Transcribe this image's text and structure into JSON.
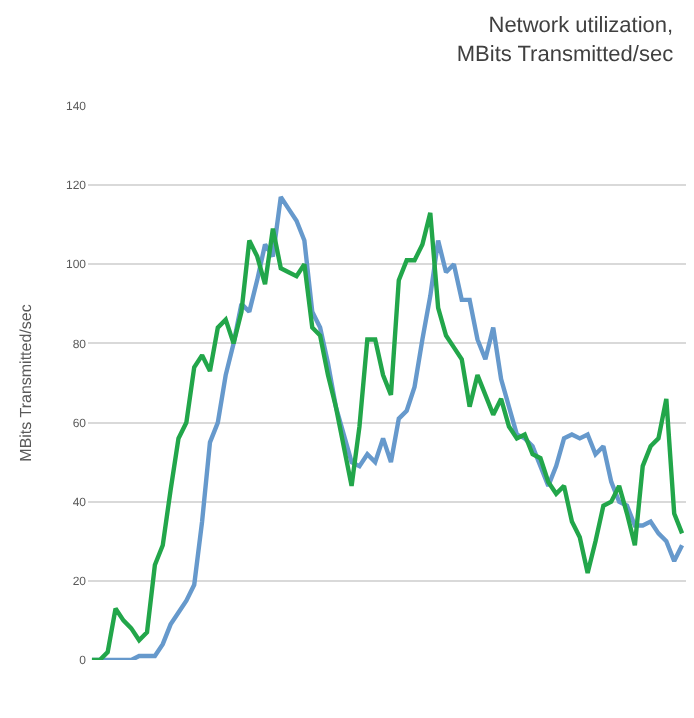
{
  "chart_data": {
    "type": "line",
    "title": "Network utilization,\nMBits Transmitted/sec",
    "ylabel": "MBits Transmitted/sec",
    "categories": [
      null,
      null,
      null,
      null,
      null,
      null,
      null,
      null,
      null,
      null,
      null,
      null,
      null,
      null,
      null,
      null,
      null,
      null,
      null,
      null,
      null,
      null,
      null,
      null,
      null,
      null,
      null,
      null,
      null,
      null,
      null,
      null,
      null,
      null,
      null,
      null,
      null,
      null,
      null,
      null,
      null,
      null,
      null,
      null,
      null,
      null,
      null,
      null,
      null,
      null,
      null,
      null,
      null,
      null,
      null,
      null,
      null,
      null,
      null,
      null,
      null,
      null,
      null,
      null,
      null,
      null,
      null,
      null,
      null,
      null,
      null,
      null,
      null,
      null,
      null,
      null
    ],
    "series": [
      {
        "color": "#6699cc",
        "values": [
          0,
          0,
          0,
          0,
          0,
          0,
          1,
          1,
          1,
          4,
          9,
          12,
          15,
          19,
          35,
          55,
          60,
          72,
          80,
          90,
          88,
          96,
          105,
          102,
          117,
          114,
          111,
          106,
          88,
          84,
          75,
          64,
          57,
          50,
          49,
          52,
          50,
          56,
          50,
          61,
          63,
          69,
          81,
          92,
          106,
          98,
          100,
          91,
          91,
          81,
          76,
          84,
          71,
          64,
          57,
          56,
          54,
          49,
          44,
          49,
          56,
          57,
          56,
          57,
          52,
          54,
          45,
          40,
          39,
          34,
          34,
          35,
          32,
          30,
          25,
          29
        ]
      },
      {
        "color": "#22a64a",
        "values": [
          0,
          0,
          2,
          13,
          10,
          8,
          5,
          7,
          24,
          29,
          43,
          56,
          60,
          74,
          77,
          73,
          84,
          86,
          80,
          88,
          106,
          102,
          95,
          109,
          99,
          98,
          97,
          100,
          84,
          82,
          72,
          64,
          54,
          44,
          59,
          81,
          81,
          72,
          67,
          96,
          101,
          101,
          105,
          113,
          89,
          82,
          79,
          76,
          64,
          72,
          67,
          62,
          66,
          59,
          56,
          57,
          52,
          51,
          45,
          42,
          44,
          35,
          31,
          22,
          30,
          39,
          40,
          44,
          37,
          29,
          49,
          54,
          56,
          66,
          37,
          32
        ]
      }
    ],
    "ylim": [
      0,
      140
    ],
    "yticks": [
      0,
      20,
      40,
      60,
      80,
      100,
      120,
      140
    ],
    "grid": "y",
    "line_style": "solid",
    "marker": "none"
  }
}
